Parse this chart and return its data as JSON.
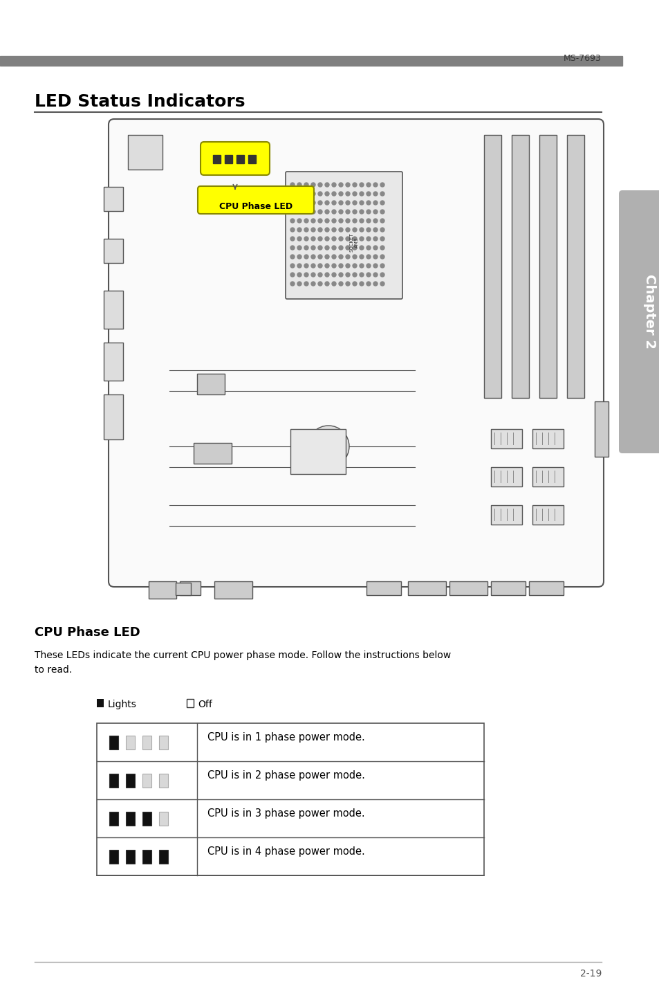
{
  "page_header_text": "MS-7693",
  "header_bar_color": "#808080",
  "title_text": "LED Status Indicators",
  "title_fontsize": 18,
  "title_font": "DejaVu Sans",
  "chapter_text": "Chapter 2",
  "section_title": "CPU Phase LED",
  "section_body": "These LEDs indicate the current CPU power phase mode. Follow the instructions below\nto read.",
  "legend_lights": "Lights",
  "legend_off": "Off",
  "table_rows": [
    "CPU is in 1 phase power mode.",
    "CPU is in 2 phase power mode.",
    "CPU is in 3 phase power mode.",
    "CPU is in 4 phase power mode."
  ],
  "led_on_color": "#111111",
  "led_off_color": "#dddddd",
  "page_num": "2-19",
  "bg_color": "#ffffff",
  "tab_color": "#aaaaaa",
  "cpu_phase_label": "CPU Phase LED",
  "cpu_phase_bubble_color": "#ffff00",
  "cpu_phase_bubble_text_color": "#000000",
  "board_border_color": "#555555",
  "board_bg": "#ffffff"
}
